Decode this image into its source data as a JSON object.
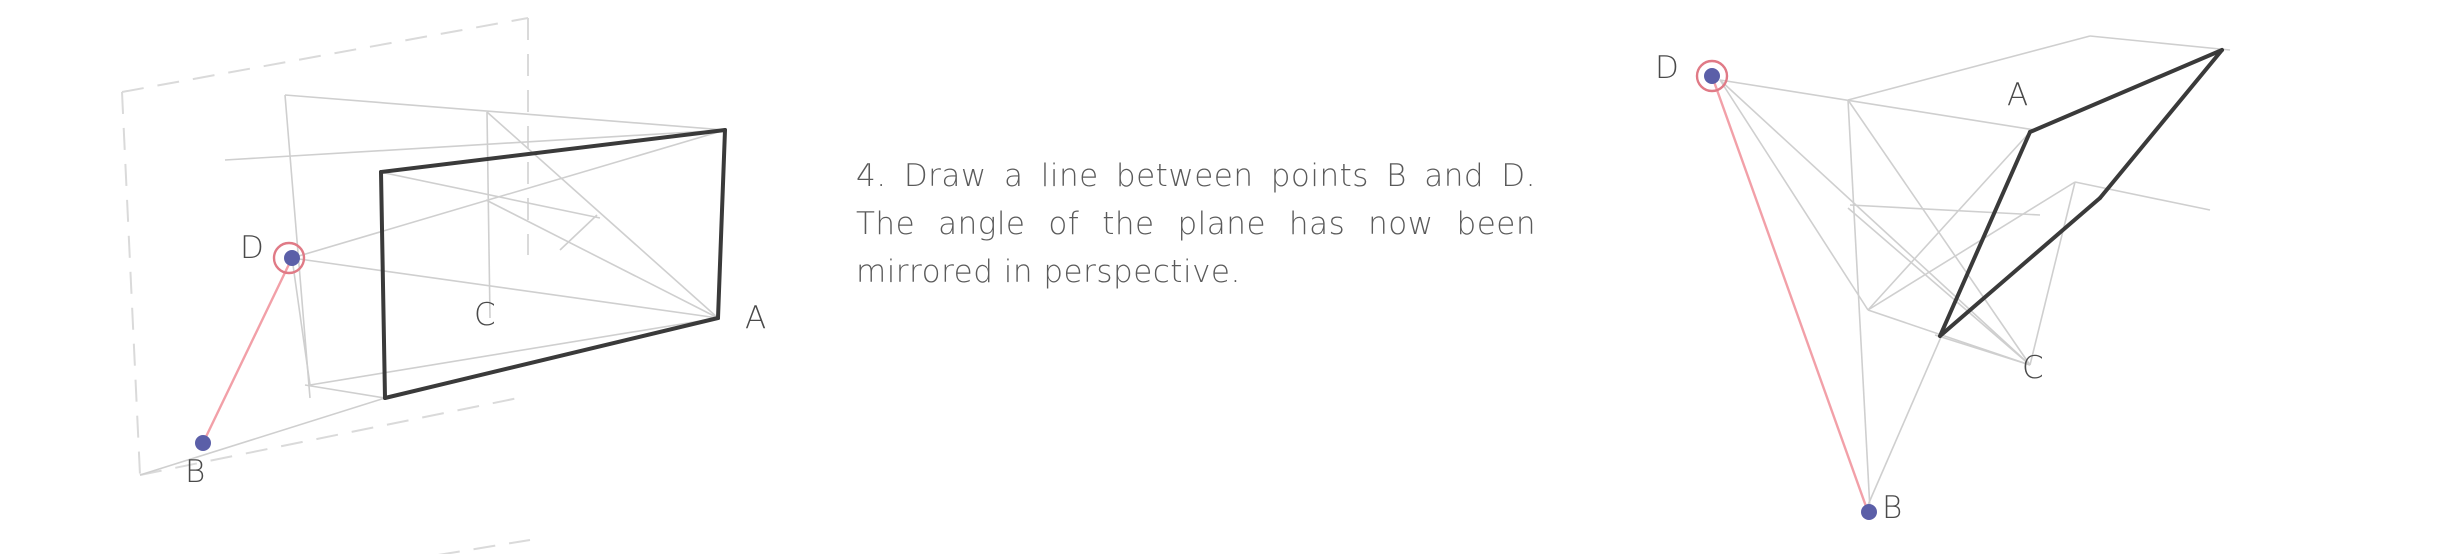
{
  "caption": {
    "line1": "4. Draw a line between points B and D.",
    "line2": "The angle of the plane has now been",
    "line3": "mirrored in perspective."
  },
  "left_figure": {
    "labels": {
      "a": "A",
      "b": "B",
      "c": "C",
      "d": "D"
    }
  },
  "right_figure": {
    "labels": {
      "a": "A",
      "b": "B",
      "c": "C",
      "d": "D"
    }
  },
  "colors": {
    "construction": "#c9c9c9",
    "dashed": "#dadada",
    "box_edge": "#3a3a3a",
    "highlight_line": "#f2a0a8",
    "point_fill": "#5b5fa8",
    "point_ring": "#e07a86"
  }
}
